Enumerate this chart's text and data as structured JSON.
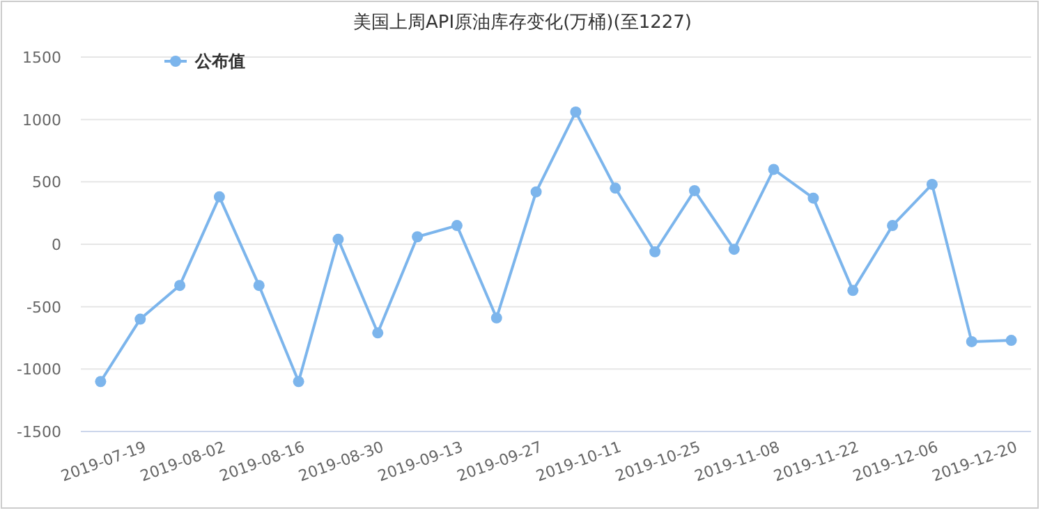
{
  "chart_data": {
    "type": "line",
    "title": "美国上周API原油库存变化(万桶)(至1227)",
    "categories": [
      null,
      "2019-07-19",
      null,
      "2019-08-02",
      null,
      "2019-08-16",
      null,
      "2019-08-30",
      null,
      "2019-09-13",
      null,
      "2019-09-27",
      null,
      "2019-10-11",
      null,
      "2019-10-25",
      null,
      "2019-11-08",
      null,
      "2019-11-22",
      null,
      "2019-12-06",
      null,
      "2019-12-20"
    ],
    "series": [
      {
        "name": "公布值",
        "color": "#7cb5ec",
        "values": [
          -1100,
          -600,
          -330,
          380,
          -330,
          -1100,
          40,
          -710,
          60,
          150,
          -590,
          420,
          1060,
          450,
          -60,
          430,
          -40,
          600,
          370,
          -370,
          150,
          480,
          -780,
          -770
        ]
      }
    ],
    "ylim": [
      -1500,
      1500
    ],
    "yticks": [
      -1500,
      -1000,
      -500,
      0,
      500,
      1000,
      1500
    ],
    "grid": "y",
    "legend": "top left",
    "marker": "circle",
    "line_style": "solid"
  }
}
